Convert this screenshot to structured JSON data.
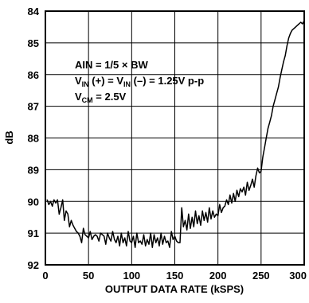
{
  "chart_data": {
    "type": "line",
    "xlabel": "OUTPUT DATA RATE (kSPS)",
    "ylabel": "dB",
    "xlim": [
      0,
      300
    ],
    "ylim": [
      84,
      92
    ],
    "y_inverted": true,
    "grid": true,
    "x_ticks": [
      "0",
      "50",
      "100",
      "150",
      "200",
      "250",
      "300"
    ],
    "y_ticks": [
      "84",
      "85",
      "86",
      "87",
      "88",
      "89",
      "90",
      "91",
      "92"
    ],
    "annotations": {
      "line1": "AIN = 1/5 × BW",
      "line2_a": "V",
      "line2_sub_a": "IN",
      "line2_b": " (+) = V",
      "line2_sub_b": "IN",
      "line2_c": " (–) = 1.25V p-p",
      "line3_a": "V",
      "line3_sub_a": "CM",
      "line3_b": " = 2.5V"
    },
    "series": [
      {
        "x": [
          2,
          4,
          6,
          8,
          10,
          12,
          14,
          16,
          18,
          20,
          22,
          24,
          26,
          28,
          30,
          32,
          34,
          36,
          38,
          40,
          42,
          44,
          46,
          48,
          50,
          52,
          54,
          56,
          58,
          60,
          62,
          64,
          66,
          68,
          70,
          72,
          74,
          76,
          78,
          80,
          82,
          84,
          86,
          88,
          90,
          92,
          94,
          96,
          98,
          100,
          102,
          104,
          106,
          108,
          110,
          112,
          114,
          116,
          118,
          120,
          122,
          124,
          126,
          128,
          130,
          132,
          134,
          136,
          138,
          140,
          142,
          144,
          146,
          148,
          150,
          152,
          154,
          156,
          158,
          160,
          162,
          164,
          166,
          168,
          170,
          172,
          174,
          176,
          178,
          180,
          182,
          184,
          186,
          188,
          190,
          192,
          194,
          196,
          198,
          200,
          202,
          204,
          206,
          208,
          210,
          212,
          214,
          216,
          218,
          220,
          222,
          224,
          226,
          228,
          230,
          232,
          234,
          236,
          238,
          240,
          242,
          244,
          246,
          248,
          250,
          252,
          254,
          256,
          258,
          260,
          262,
          264,
          266,
          268,
          270,
          272,
          274,
          276,
          278,
          280,
          282,
          284,
          286,
          288,
          290,
          292,
          294,
          296,
          298,
          300
        ],
        "values": [
          89.95,
          90.1,
          90.0,
          90.15,
          89.95,
          90.05,
          89.95,
          90.4,
          90.2,
          89.95,
          90.6,
          90.3,
          90.4,
          90.8,
          90.6,
          90.75,
          90.85,
          90.95,
          91.0,
          91.1,
          91.3,
          90.85,
          91.05,
          91.1,
          91.15,
          90.95,
          91.2,
          91.1,
          91.05,
          91.1,
          91.25,
          91.0,
          91.05,
          91.1,
          91.35,
          91.0,
          91.15,
          91.25,
          90.95,
          91.2,
          91.3,
          91.1,
          91.4,
          91.0,
          91.3,
          91.15,
          91.4,
          90.95,
          91.25,
          91.3,
          91.1,
          91.45,
          91.0,
          91.3,
          91.25,
          91.35,
          91.05,
          91.4,
          91.2,
          91.35,
          91.0,
          91.45,
          91.05,
          91.3,
          91.15,
          91.4,
          91.0,
          91.35,
          91.1,
          91.3,
          91.25,
          91.45,
          90.95,
          91.2,
          91.1,
          91.25,
          91.3,
          91.3,
          90.2,
          90.8,
          90.6,
          90.9,
          90.4,
          90.85,
          90.5,
          90.8,
          90.3,
          90.7,
          90.45,
          90.75,
          90.3,
          90.6,
          90.35,
          90.65,
          90.2,
          90.55,
          90.3,
          90.5,
          90.4,
          90.45,
          90.1,
          90.35,
          90.2,
          90.15,
          89.95,
          90.1,
          89.8,
          90.05,
          89.75,
          90.0,
          89.65,
          89.85,
          89.6,
          89.7,
          89.55,
          89.8,
          89.4,
          89.65,
          89.5,
          89.3,
          89.55,
          89.2,
          88.95,
          89.1,
          89.05,
          88.6,
          88.3,
          88.0,
          87.7,
          87.5,
          87.3,
          87.0,
          86.8,
          86.6,
          86.4,
          86.1,
          85.85,
          85.6,
          85.4,
          85.1,
          84.85,
          84.7,
          84.6,
          84.55,
          84.5,
          84.45,
          84.4,
          84.35,
          84.4,
          84.3
        ]
      }
    ]
  }
}
